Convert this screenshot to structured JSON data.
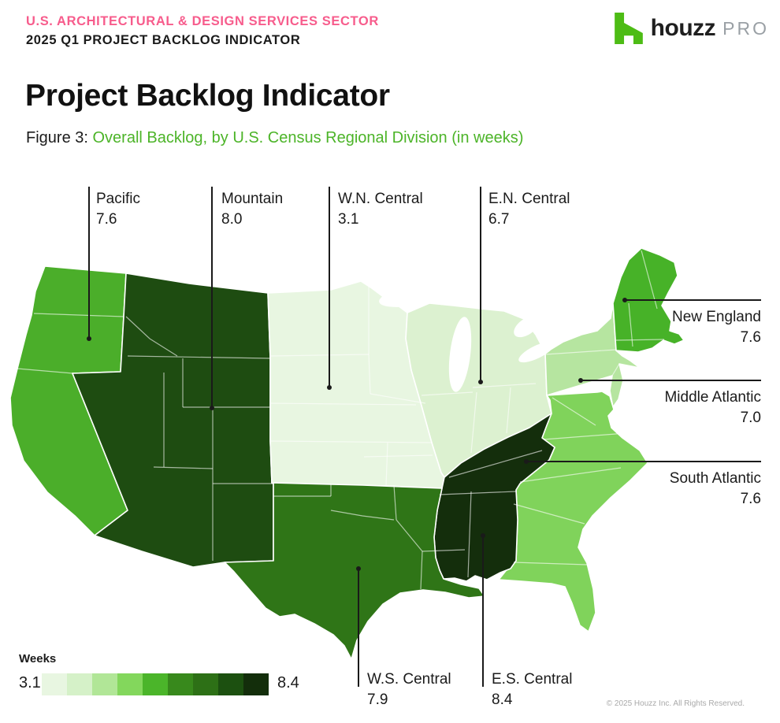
{
  "header": {
    "eyebrow_line1": "U.S. ARCHITECTURAL & DESIGN SERVICES SECTOR",
    "eyebrow_line2": "2025 Q1 PROJECT BACKLOG INDICATOR",
    "logo": {
      "brand": "houzz",
      "suffix": "PRO",
      "icon_color": "#4DBC15"
    }
  },
  "title": "Project Backlog Indicator",
  "figure": {
    "prefix": "Figure 3: ",
    "caption": "Overall Backlog, by U.S. Census Regional Division (in weeks)"
  },
  "map": {
    "callouts": {
      "pacific": {
        "name": "Pacific",
        "value": "7.6"
      },
      "mountain": {
        "name": "Mountain",
        "value": "8.0"
      },
      "wn_central": {
        "name": "W.N. Central",
        "value": "3.1"
      },
      "en_central": {
        "name": "E.N. Central",
        "value": "6.7"
      },
      "new_england": {
        "name": "New England",
        "value": "7.6"
      },
      "mid_atlantic": {
        "name": "Middle Atlantic",
        "value": "7.0"
      },
      "south_atlantic": {
        "name": "South Atlantic",
        "value": "7.6"
      },
      "ws_central": {
        "name": "W.S. Central",
        "value": "7.9"
      },
      "es_central": {
        "name": "E.S. Central",
        "value": "8.4"
      }
    },
    "region_colors": {
      "pacific": "#4BAE2A",
      "mountain": "#1E4C11",
      "wn_central": "#E8F6E1",
      "en_central": "#DCF1D0",
      "ws_central": "#2F7517",
      "es_central": "#142E0C",
      "new_england": "#47B228",
      "mid_atlantic": "#B6E5A0",
      "south_atlantic": "#80D35B"
    }
  },
  "legend": {
    "label": "Weeks",
    "min": "3.1",
    "max": "8.4",
    "colors": [
      "#E8F6E1",
      "#D5F1C8",
      "#B1E697",
      "#83D75C",
      "#4BB52A",
      "#38891C",
      "#2D7016",
      "#1C5010",
      "#132E0B"
    ]
  },
  "footer": {
    "copyright": "© 2025 Houzz Inc. All Rights Reserved."
  },
  "chart_data": {
    "type": "heatmap",
    "map_variant": "choropleth",
    "title": "Project Backlog Indicator",
    "subtitle": "Figure 3: Overall Backlog, by U.S. Census Regional Division (in weeks)",
    "unit": "weeks",
    "scale": {
      "label": "Weeks",
      "min": 3.1,
      "max": 8.4
    },
    "legend_position": "bottom-left",
    "regions": [
      {
        "division": "Pacific",
        "value": 7.6
      },
      {
        "division": "Mountain",
        "value": 8.0
      },
      {
        "division": "W.N. Central",
        "value": 3.1
      },
      {
        "division": "E.N. Central",
        "value": 6.7
      },
      {
        "division": "W.S. Central",
        "value": 7.9
      },
      {
        "division": "E.S. Central",
        "value": 8.4
      },
      {
        "division": "New England",
        "value": 7.6
      },
      {
        "division": "Middle Atlantic",
        "value": 7.0
      },
      {
        "division": "South Atlantic",
        "value": 7.6
      }
    ]
  }
}
